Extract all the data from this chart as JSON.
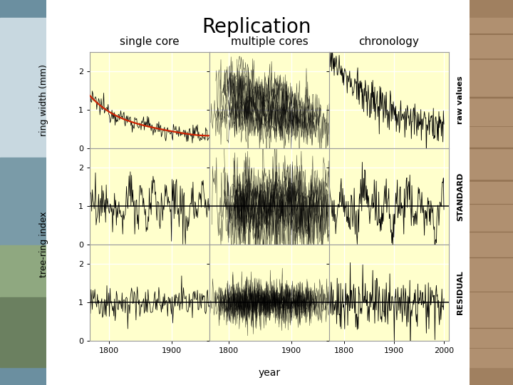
{
  "title": "Replication",
  "col_labels": [
    "single core",
    "multiple cores",
    "chronology"
  ],
  "row_label_left1": "ring width (mm)",
  "row_label_left2": "tree-ring index",
  "row_labels_right": [
    "raw values",
    "STANDARD",
    "RESIDUAL"
  ],
  "background_color": "#FFFFCC",
  "fig_bg": "#FFFFFF",
  "left_bg": "#7BA0B0",
  "right_bg": "#A08060",
  "x_ticks_col0": [
    1800,
    1900
  ],
  "x_ticks_col1": [
    1800,
    1900
  ],
  "x_ticks_col2": [
    1800,
    1900,
    2000
  ],
  "xlim_col0": [
    1770,
    1960
  ],
  "xlim_col1": [
    1770,
    1960
  ],
  "xlim_col2": [
    1770,
    2010
  ],
  "ylim_row0": [
    0,
    2.5
  ],
  "ylim_row1": [
    0,
    2.5
  ],
  "ylim_row2": [
    0,
    2.5
  ],
  "yticks": [
    0,
    1,
    2
  ],
  "seed": 12345
}
